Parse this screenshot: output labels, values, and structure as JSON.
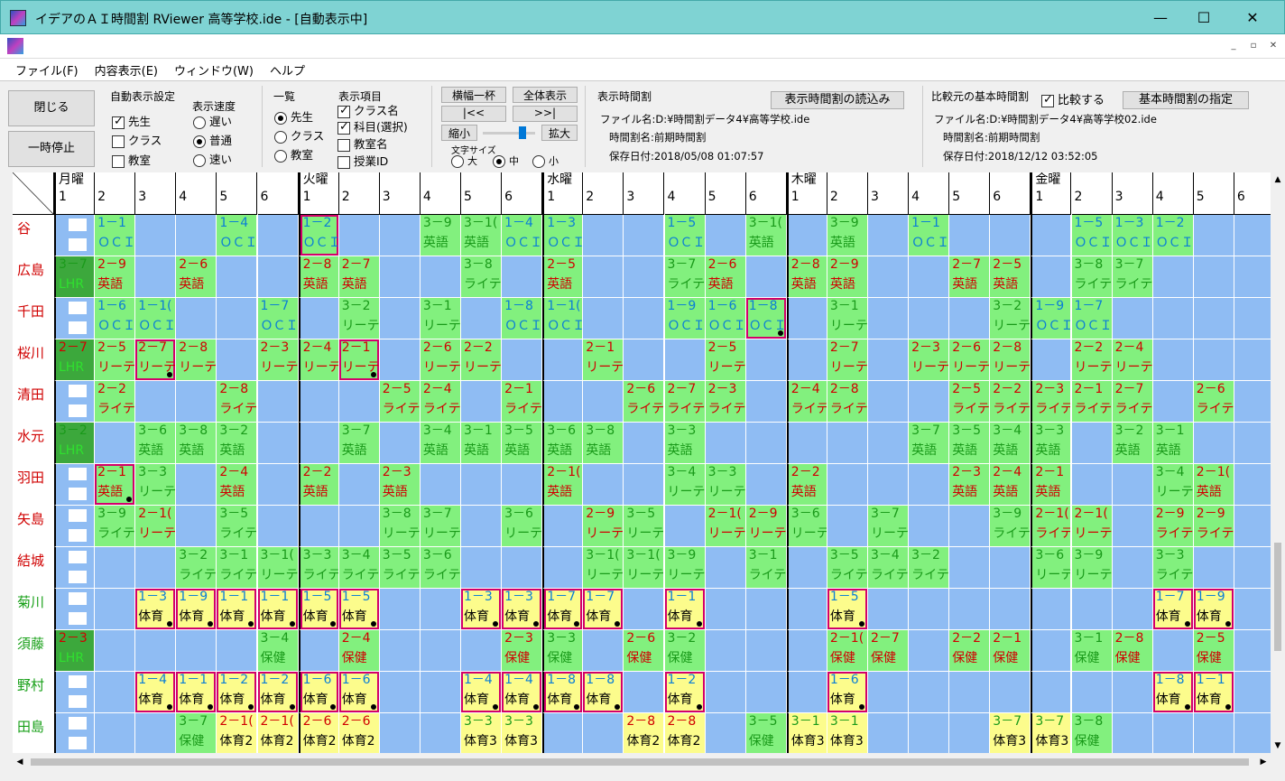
{
  "window": {
    "title": "イデアのＡＩ時間割 RViewer 高等学校.ide - [自動表示中]",
    "min": "—",
    "max": "☐",
    "close": "✕"
  },
  "mdi": {
    "min": "_",
    "restore": "▫",
    "close": "✕"
  },
  "menu": [
    "ファイル(F)",
    "内容表示(E)",
    "ウィンドウ(W)",
    "ヘルプ"
  ],
  "buttons": {
    "close": "閉じる",
    "pause": "一時停止"
  },
  "auto_display": {
    "title": "自動表示設定",
    "items": [
      {
        "label": "先生",
        "checked": true
      },
      {
        "label": "クラス",
        "checked": false
      },
      {
        "label": "教室",
        "checked": false
      }
    ]
  },
  "speed": {
    "title": "表示速度",
    "items": [
      {
        "label": "遅い",
        "on": false
      },
      {
        "label": "普通",
        "on": true
      },
      {
        "label": "速い",
        "on": false
      }
    ]
  },
  "list": {
    "title": "一覧",
    "items": [
      {
        "label": "先生",
        "on": true
      },
      {
        "label": "クラス",
        "on": false
      },
      {
        "label": "教室",
        "on": false
      }
    ]
  },
  "display_items": {
    "title": "表示項目",
    "items": [
      {
        "label": "クラス名",
        "checked": true
      },
      {
        "label": "科目(選択)",
        "checked": true
      },
      {
        "label": "教室名",
        "checked": false
      },
      {
        "label": "授業ID",
        "checked": false
      }
    ]
  },
  "view": {
    "fit_width": "横幅一杯",
    "show_all": "全体表示",
    "first": "|<<",
    "last": ">>|",
    "shrink": "縮小",
    "zoom": "拡大",
    "font_size": "文字サイズ",
    "sizes": [
      {
        "label": "大",
        "on": false
      },
      {
        "label": "中",
        "on": true
      },
      {
        "label": "小",
        "on": false
      }
    ]
  },
  "shown": {
    "title": "表示時間割",
    "load_btn": "表示時間割の読込み",
    "file": "ファイル名:D:¥時間割データ4¥高等学校.ide",
    "name": "時間割名:前期時間割",
    "date": "保存日付:2018/05/08  01:07:57"
  },
  "compare": {
    "title": "比較元の基本時間割",
    "check_label": "比較する",
    "checked": true,
    "base_btn": "基本時間割の指定",
    "file": "ファイル名:D:¥時間割データ4¥高等学校02.ide",
    "name": "時間割名:前期時間割",
    "date": "保存日付:2018/12/12  03:52:05"
  },
  "days": [
    "月曜",
    "火曜",
    "水曜",
    "木曜",
    "金曜"
  ],
  "periods": [
    "1",
    "2",
    "3",
    "4",
    "5",
    "6"
  ],
  "teachers": [
    {
      "name": "谷",
      "color": "#d00000"
    },
    {
      "name": "広島",
      "color": "#d00000"
    },
    {
      "name": "千田",
      "color": "#d00000"
    },
    {
      "name": "桜川",
      "color": "#d00000"
    },
    {
      "name": "清田",
      "color": "#d00000"
    },
    {
      "name": "水元",
      "color": "#d00000"
    },
    {
      "name": "羽田",
      "color": "#d00000"
    },
    {
      "name": "矢島",
      "color": "#d00000"
    },
    {
      "name": "結城",
      "color": "#d00000"
    },
    {
      "name": "菊川",
      "color": "#18a018"
    },
    {
      "name": "須藤",
      "color": "#18a018"
    },
    {
      "name": "野村",
      "color": "#18a018"
    },
    {
      "name": "田島",
      "color": "#18a018"
    }
  ],
  "grid": [
    [
      "x",
      "g|1－1|ＯＣＩ|b",
      "",
      "",
      "g|1－4|ＯＣＩ|b",
      "",
      "g|1－2|ＯＣＩ|b|p",
      "",
      "",
      "g|3－9|英語|g",
      "g|3－1(|英語|g",
      "g|1－4|ＯＣＩ|b",
      "g|1－3|ＯＣＩ|b",
      "",
      "",
      "g|1－5|ＯＣＩ|b",
      "",
      "g|3－1(|英語|g",
      "",
      "g|3－9|英語|g",
      "",
      "g|1－1|ＯＣＩ|b",
      "",
      "",
      "",
      "g|1－5|ＯＣＩ|b",
      "g|1－3|ＯＣＩ|b",
      "g|1－2|ＯＣＩ|b",
      ""
    ],
    [
      "dg|3－7|LHR|g",
      "g|2－9|英語|r",
      "",
      "g|2－6|英語|r",
      "",
      "",
      "g|2－8|英語|r",
      "g|2－7|英語|r",
      "",
      "",
      "g|3－8|ライテ|g",
      "",
      "g|2－5|英語|r",
      "",
      "",
      "g|3－7|ライテ|g",
      "g|2－6|英語|r",
      "",
      "g|2－8|英語|r",
      "g|2－9|英語|r",
      "",
      "",
      "g|2－7|英語|r",
      "g|2－5|英語|r",
      "",
      "g|3－8|ライテ|g",
      "g|3－7|ライテ|g",
      "",
      ""
    ],
    [
      "x",
      "g|1－6|ＯＣＩ|b",
      "g|1－1(|ＯＣＩ|b",
      "",
      "",
      "g|1－7|ＯＣＩ|b",
      "",
      "g|3－2|リーテ|g",
      "",
      "g|3－1|リーテ|g",
      "",
      "g|1－8|ＯＣＩ|b",
      "g|1－1(|ＯＣＩ|b",
      "",
      "",
      "g|1－9|ＯＣＩ|b",
      "g|1－6|ＯＣＩ|b",
      "g|1－8|ＯＣＩ|b|pd",
      "",
      "g|3－1|リーテ|g",
      "",
      "",
      "",
      "g|3－2|リーテ|g",
      "g|1－9|ＯＣＩ|b",
      "g|1－7|ＯＣＩ|b",
      "",
      "",
      ""
    ],
    [
      "dg|2－7|LHR|r",
      "g|2－5|リーテ|r",
      "g|2－7|リーテ|r|pd",
      "g|2－8|リーテ|r",
      "",
      "g|2－3|リーテ|r",
      "g|2－4|リーテ|r",
      "g|2－1|リーテ|r|pd",
      "",
      "g|2－6|リーテ|r",
      "g|2－2|リーテ|r",
      "",
      "",
      "g|2－1|リーテ|r",
      "",
      "",
      "g|2－5|リーテ|r",
      "",
      "",
      "g|2－7|リーテ|r",
      "",
      "g|2－3|リーテ|r",
      "g|2－6|リーテ|r",
      "g|2－8|リーテ|r",
      "",
      "g|2－2|リーテ|r",
      "g|2－4|リーテ|r",
      "",
      ""
    ],
    [
      "x",
      "g|2－2|ライテ|r",
      "",
      "",
      "g|2－8|ライテ|r",
      "",
      "",
      "",
      "g|2－5|ライテ|r",
      "g|2－4|ライテ|r",
      "",
      "g|2－1|ライテ|r",
      "",
      "",
      "g|2－6|ライテ|r",
      "g|2－7|ライテ|r",
      "g|2－3|ライテ|r",
      "",
      "g|2－4|ライテ|r",
      "g|2－8|ライテ|r",
      "",
      "",
      "g|2－5|ライテ|r",
      "g|2－2|ライテ|r",
      "g|2－3|ライテ|r",
      "g|2－1|ライテ|r",
      "g|2－7|ライテ|r",
      "",
      "g|2－6|ライテ|r"
    ],
    [
      "dg|3－2|LHR|g",
      "",
      "g|3－6|英語|g",
      "g|3－8|英語|g",
      "g|3－2|英語|g",
      "",
      "",
      "g|3－7|英語|g",
      "",
      "g|3－4|英語|g",
      "g|3－1|英語|g",
      "g|3－5|英語|g",
      "g|3－6|英語|g",
      "g|3－8|英語|g",
      "",
      "g|3－3|英語|g",
      "",
      "",
      "",
      "",
      "",
      "g|3－7|英語|g",
      "g|3－5|英語|g",
      "g|3－4|英語|g",
      "g|3－3|英語|g",
      "",
      "g|3－2|英語|g",
      "g|3－1|英語|g",
      ""
    ],
    [
      "x",
      "g|2－1|英語|r|pd",
      "g|3－3|リーテ|g",
      "",
      "g|2－4|英語|r",
      "",
      "g|2－2|英語|r",
      "",
      "g|2－3|英語|r",
      "",
      "",
      "",
      "g|2－1(|英語|r",
      "",
      "",
      "g|3－4|リーテ|g",
      "g|3－3|リーテ|g",
      "",
      "g|2－2|英語|r",
      "",
      "",
      "",
      "g|2－3|英語|r",
      "g|2－4|英語|r",
      "g|2－1|英語|r",
      "",
      "",
      "g|3－4|リーテ|g",
      "g|2－1(|英語|r"
    ],
    [
      "x",
      "g|3－9|ライテ|g",
      "g|2－1(|リーテ|r",
      "",
      "g|3－5|ライテ|g",
      "",
      "",
      "",
      "g|3－8|リーテ|g",
      "g|3－7|リーテ|g",
      "",
      "g|3－6|リーテ|g",
      "",
      "g|2－9|リーテ|r",
      "g|3－5|リーテ|g",
      "",
      "g|2－1(|リーテ|r",
      "g|2－9|リーテ|r",
      "g|3－6|リーテ|g",
      "",
      "g|3－7|リーテ|g",
      "",
      "",
      "g|3－9|ライテ|g",
      "g|2－1(|ライテ|r",
      "g|2－1(|リーテ|r",
      "",
      "g|2－9|ライテ|r",
      "g|2－9|ライテ|r"
    ],
    [
      "x",
      "",
      "",
      "g|3－2|ライテ|g",
      "g|3－1|ライテ|g",
      "g|3－1(|リーテ|g",
      "g|3－3|ライテ|g",
      "g|3－4|ライテ|g",
      "g|3－5|ライテ|g",
      "g|3－6|ライテ|g",
      "",
      "",
      "",
      "g|3－1(|リーテ|g",
      "g|3－1(|リーテ|g",
      "g|3－9|リーテ|g",
      "",
      "g|3－1|ライテ|g",
      "",
      "g|3－5|ライテ|g",
      "g|3－4|ライテ|g",
      "g|3－2|ライテ|g",
      "",
      "",
      "g|3－6|リーテ|g",
      "g|3－9|リーテ|g",
      "",
      "g|3－3|ライテ|g",
      ""
    ],
    [
      "x",
      "",
      "g|1－3|体育|b|pd",
      "g|1－9|体育|b|pd",
      "g|1－1|体育|b|pd",
      "g|1－1|体育|b|pd",
      "g|1－5|体育|b|pd",
      "g|1－5|体育|b|pd",
      "",
      "",
      "g|1－3|体育|b|pd",
      "g|1－3|体育|b|pd",
      "g|1－7|体育|b|pd",
      "g|1－7|体育|b|pd",
      "",
      "g|1－1|体育|b|pd",
      "",
      "",
      "",
      "g|1－5|体育|b|pd",
      "",
      "",
      "",
      "",
      "",
      "",
      "",
      "g|1－7|体育|b|pd",
      "g|1－9|体育|b|pd"
    ],
    [
      "dg|2－3|LHR|r",
      "",
      "",
      "",
      "",
      "g|3－4|保健|g",
      "",
      "g|2－4|保健|r",
      "",
      "",
      "",
      "g|2－3|保健|r",
      "g|3－3|保健|g",
      "",
      "g|2－6|保健|r",
      "g|3－2|保健|g",
      "",
      "",
      "",
      "g|2－1(|保健|r",
      "g|2－7|保健|r",
      "",
      "g|2－2|保健|r",
      "g|2－1|保健|r",
      "",
      "g|3－1|保健|g",
      "g|2－8|保健|r",
      "",
      "g|2－5|保健|r"
    ],
    [
      "x",
      "",
      "g|1－4|体育|b|pd",
      "g|1－1|体育|b|pd",
      "g|1－2|体育|b|pd",
      "g|1－2|体育|b|pd",
      "g|1－6|体育|b|pd",
      "g|1－6|体育|b|pd",
      "",
      "",
      "g|1－4|体育|b|pd",
      "g|1－4|体育|b|pd",
      "g|1－8|体育|b|pd",
      "g|1－8|体育|b|pd",
      "",
      "g|1－2|体育|b|pd",
      "",
      "",
      "",
      "g|1－6|体育|b|pd",
      "",
      "",
      "",
      "",
      "",
      "",
      "",
      "g|1－8|体育|b|pd",
      "g|1－1|体育|b|pd"
    ],
    [
      "x",
      "",
      "",
      "g|3－7|保健|g",
      "g|2－1(|体育2|r",
      "g|2－1(|体育2|r",
      "g|2－6|体育2|r",
      "g|2－6|体育2|r",
      "",
      "",
      "g|3－3|体育3|g",
      "g|3－3|体育3|g",
      "",
      "",
      "g|2－8|体育2|r",
      "g|2－8|体育2|r",
      "",
      "g|3－5|保健|g",
      "g|3－1|体育3|g",
      "g|3－1|体育3|g",
      "",
      "",
      "",
      "g|3－7|体育3|g",
      "g|3－7|体育3|g",
      "g|3－8|保健|g",
      "",
      ""
    ]
  ]
}
